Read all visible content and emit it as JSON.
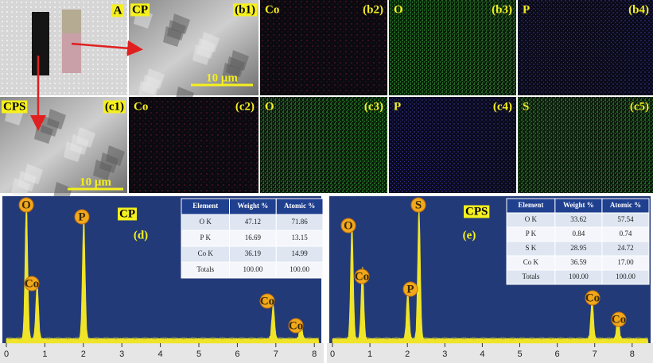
{
  "top_row": [
    {
      "tag": "A"
    },
    {
      "tag": "CP",
      "label": "(b1)",
      "scale_bar": "10 μm"
    },
    {
      "tag": "Co",
      "label": "(b2)"
    },
    {
      "tag": "O",
      "label": "(b3)"
    },
    {
      "tag": "P",
      "label": "(b4)"
    }
  ],
  "middle_row": [
    {
      "tag": "CPS",
      "label": "(c1)",
      "scale_bar": "10 μm"
    },
    {
      "tag": "Co",
      "label": "(c2)"
    },
    {
      "tag": "O",
      "label": "(c3)"
    },
    {
      "tag": "P",
      "label": "(c4)"
    },
    {
      "tag": "S",
      "label": "(c5)"
    }
  ],
  "spectra": [
    {
      "tag": "CP",
      "label": "(d)",
      "peaks": [
        "O",
        "Co",
        "P",
        "Co",
        "Co"
      ],
      "xticks": [
        "0",
        "1",
        "2",
        "3",
        "4",
        "5",
        "6",
        "7",
        "8"
      ],
      "table": {
        "header": [
          "Element",
          "Weight %",
          "Atomic %"
        ],
        "rows": [
          [
            "O K",
            "47.12",
            "71.86"
          ],
          [
            "P K",
            "16.69",
            "13.15"
          ],
          [
            "Co K",
            "36.19",
            "14.99"
          ],
          [
            "Totals",
            "100.00",
            "100.00"
          ]
        ]
      }
    },
    {
      "tag": "CPS",
      "label": "(e)",
      "peaks": [
        "O",
        "Co",
        "P",
        "S",
        "Co",
        "Co"
      ],
      "xticks": [
        "0",
        "1",
        "2",
        "3",
        "4",
        "5",
        "6",
        "7",
        "8"
      ],
      "table": {
        "header": [
          "Element",
          "Weight %",
          "Atomic %"
        ],
        "rows": [
          [
            "O K",
            "33.62",
            "57.54"
          ],
          [
            "P K",
            "0.84",
            "0.74"
          ],
          [
            "S K",
            "28.95",
            "24.72"
          ],
          [
            "Co K",
            "36.59",
            "17.00"
          ],
          [
            "Totals",
            "100.00",
            "100.00"
          ]
        ]
      }
    }
  ]
}
